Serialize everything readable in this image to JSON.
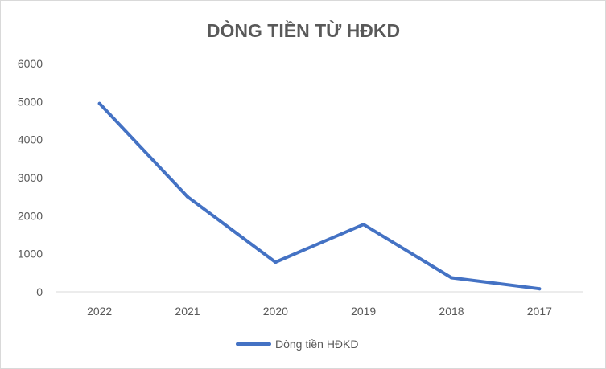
{
  "chart_data": {
    "type": "line",
    "title": "DÒNG TIỀN TỪ HĐKD",
    "xlabel": "",
    "ylabel": "",
    "categories": [
      "2022",
      "2021",
      "2020",
      "2019",
      "2018",
      "2017"
    ],
    "series": [
      {
        "name": "Dòng tiền HĐKD",
        "values": [
          4950,
          2500,
          780,
          1770,
          370,
          80
        ],
        "color": "#4472c4"
      }
    ],
    "ylim": [
      0,
      6000
    ],
    "yticks": [
      "0",
      "1000",
      "2000",
      "3000",
      "4000",
      "5000",
      "6000"
    ],
    "grid": false,
    "legend_position": "bottom"
  }
}
